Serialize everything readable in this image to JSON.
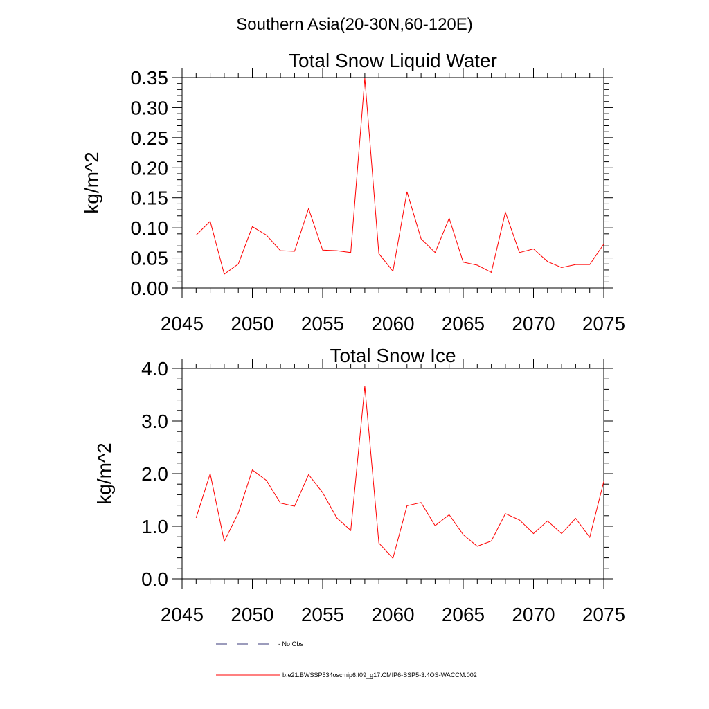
{
  "page_title": "Southern Asia(20-30N,60-120E)",
  "legend": {
    "items": [
      {
        "label": "- No Obs",
        "style": "dashed",
        "color": "#3a3a7a"
      },
      {
        "label": "b.e21.BWSSP534oscmip6.f09_g17.CMIP6-SSP5-3.4OS-WACCM.002",
        "style": "solid",
        "color": "#ff0000"
      }
    ]
  },
  "chart_data": [
    {
      "type": "line",
      "title": "Total Snow Liquid Water",
      "xlabel": "",
      "ylabel": "kg/m^2",
      "xlim": [
        2045,
        2075
      ],
      "ylim": [
        0,
        0.35
      ],
      "xticks": [
        2045,
        2050,
        2055,
        2060,
        2065,
        2070,
        2075
      ],
      "xtick_labels": [
        "2045",
        "2050",
        "2055",
        "2060",
        "2065",
        "2070",
        "2075"
      ],
      "yticks": [
        0,
        0.05,
        0.1,
        0.15,
        0.2,
        0.25,
        0.3,
        0.35
      ],
      "ytick_labels": [
        "0.00",
        "0.05",
        "0.10",
        "0.15",
        "0.20",
        "0.25",
        "0.30",
        "0.35"
      ],
      "grid": false,
      "series": [
        {
          "color": "#ff0000",
          "x": [
            2046,
            2047,
            2048,
            2049,
            2050,
            2051,
            2052,
            2053,
            2054,
            2055,
            2056,
            2057,
            2058,
            2059,
            2060,
            2061,
            2062,
            2063,
            2064,
            2065,
            2066,
            2067,
            2068,
            2069,
            2070,
            2071,
            2072,
            2073,
            2074,
            2075
          ],
          "y": [
            0.088,
            0.111,
            0.023,
            0.04,
            0.102,
            0.088,
            0.062,
            0.061,
            0.132,
            0.063,
            0.062,
            0.059,
            0.349,
            0.057,
            0.028,
            0.16,
            0.082,
            0.059,
            0.116,
            0.043,
            0.038,
            0.026,
            0.126,
            0.059,
            0.065,
            0.044,
            0.034,
            0.039,
            0.039,
            0.073
          ]
        }
      ]
    },
    {
      "type": "line",
      "title": "Total Snow Ice",
      "xlabel": "",
      "ylabel": "kg/m^2",
      "xlim": [
        2045,
        2075
      ],
      "ylim": [
        0,
        4
      ],
      "xticks": [
        2045,
        2050,
        2055,
        2060,
        2065,
        2070,
        2075
      ],
      "xtick_labels": [
        "2045",
        "2050",
        "2055",
        "2060",
        "2065",
        "2070",
        "2075"
      ],
      "yticks": [
        0,
        1,
        2,
        3,
        4
      ],
      "ytick_labels": [
        "0.0",
        "1.0",
        "2.0",
        "3.0",
        "4.0"
      ],
      "grid": false,
      "series": [
        {
          "color": "#ff0000",
          "x": [
            2046,
            2047,
            2048,
            2049,
            2050,
            2051,
            2052,
            2053,
            2054,
            2055,
            2056,
            2057,
            2058,
            2059,
            2060,
            2061,
            2062,
            2063,
            2064,
            2065,
            2066,
            2067,
            2068,
            2069,
            2070,
            2071,
            2072,
            2073,
            2074,
            2075
          ],
          "y": [
            1.16,
            2.0,
            0.71,
            1.25,
            2.07,
            1.87,
            1.44,
            1.38,
            1.98,
            1.64,
            1.16,
            0.92,
            3.66,
            0.68,
            0.39,
            1.39,
            1.45,
            1.01,
            1.22,
            0.84,
            0.62,
            0.72,
            1.24,
            1.12,
            0.86,
            1.1,
            0.86,
            1.15,
            0.79,
            1.85
          ]
        }
      ]
    }
  ]
}
